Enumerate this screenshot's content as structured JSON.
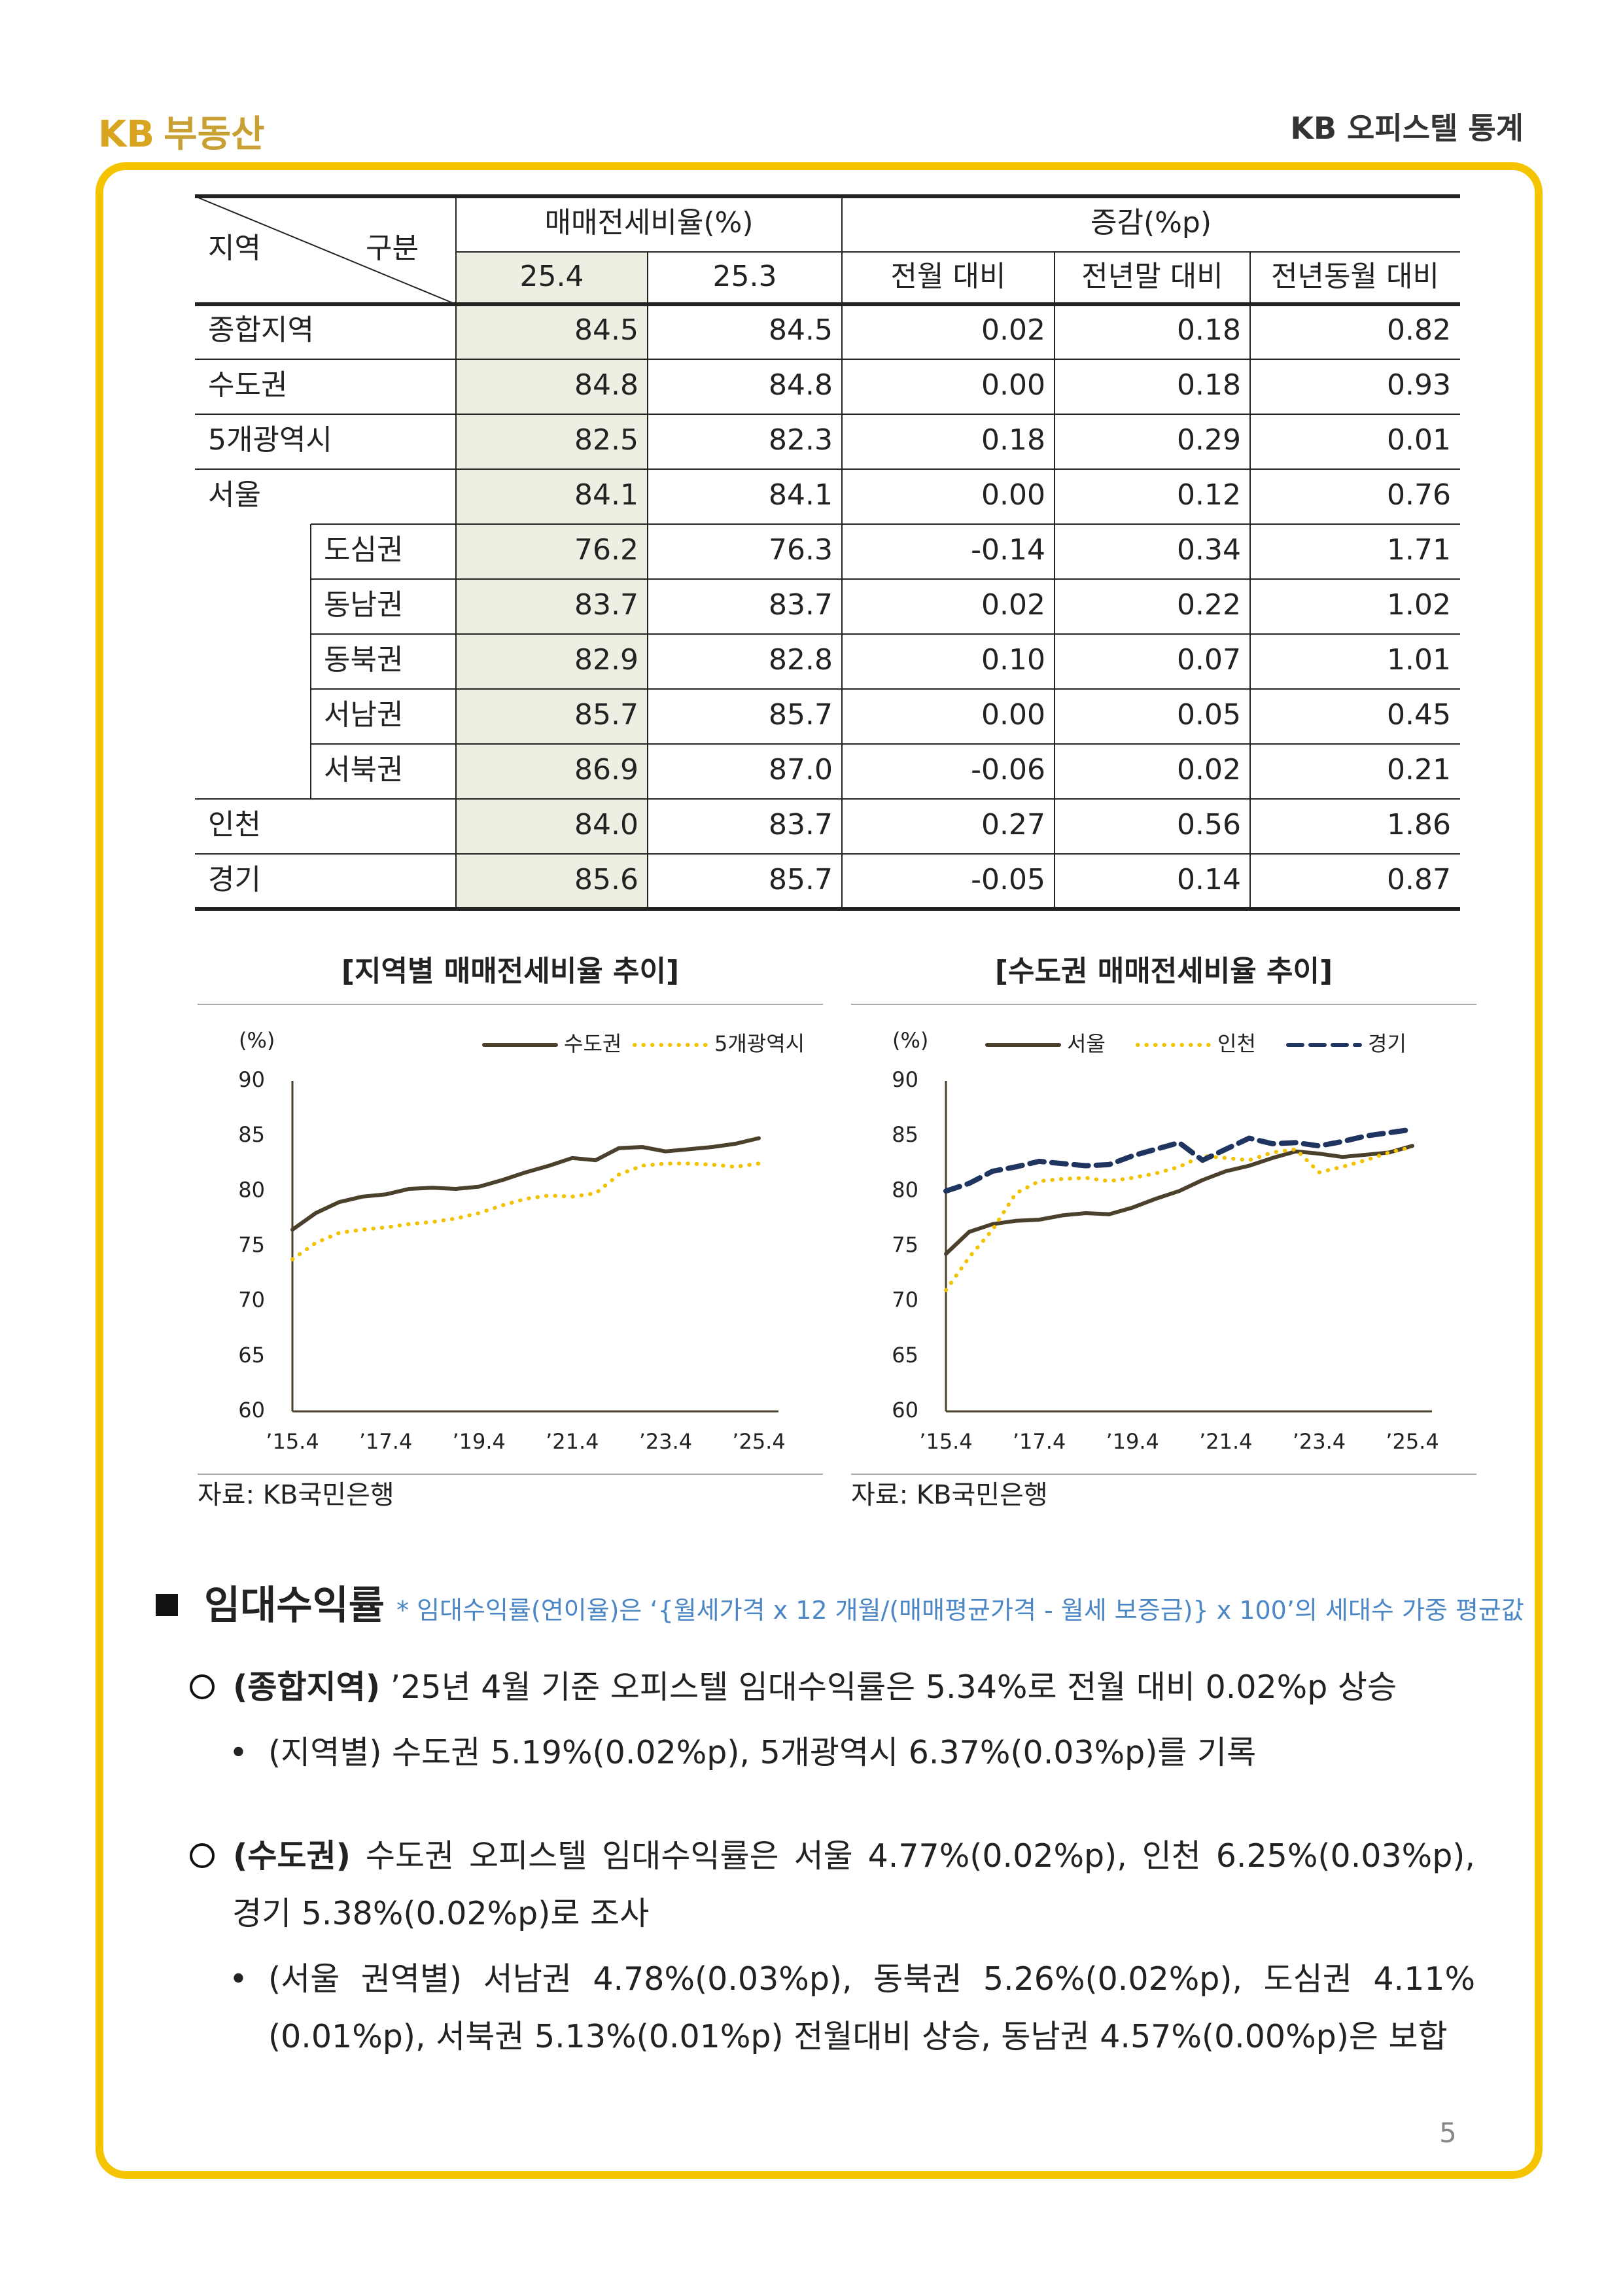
{
  "header": {
    "logo_mark": "KB",
    "logo_text": "부동산",
    "title": "KB 오피스텔 통계"
  },
  "table": {
    "corner_region": "지역",
    "corner_item": "구분",
    "group_headers": [
      "매매전세비율(%)",
      "증감(%p)"
    ],
    "columns": [
      "25.4",
      "25.3",
      "전월 대비",
      "전년말 대비",
      "전년동월 대비"
    ],
    "rows": [
      {
        "name": "종합지역",
        "cells": [
          "84.5",
          "84.5",
          "0.02",
          "0.18",
          "0.82"
        ]
      },
      {
        "name": "수도권",
        "cells": [
          "84.8",
          "84.8",
          "0.00",
          "0.18",
          "0.93"
        ]
      },
      {
        "name": "5개광역시",
        "cells": [
          "82.5",
          "82.3",
          "0.18",
          "0.29",
          "0.01"
        ]
      },
      {
        "name": "서울",
        "cells": [
          "84.1",
          "84.1",
          "0.00",
          "0.12",
          "0.76"
        ],
        "districts": [
          {
            "name": "도심권",
            "cells": [
              "76.2",
              "76.3",
              "-0.14",
              "0.34",
              "1.71"
            ]
          },
          {
            "name": "동남권",
            "cells": [
              "83.7",
              "83.7",
              "0.02",
              "0.22",
              "1.02"
            ]
          },
          {
            "name": "동북권",
            "cells": [
              "82.9",
              "82.8",
              "0.10",
              "0.07",
              "1.01"
            ]
          },
          {
            "name": "서남권",
            "cells": [
              "85.7",
              "85.7",
              "0.00",
              "0.05",
              "0.45"
            ]
          },
          {
            "name": "서북권",
            "cells": [
              "86.9",
              "87.0",
              "-0.06",
              "0.02",
              "0.21"
            ]
          }
        ]
      },
      {
        "name": "인천",
        "cells": [
          "84.0",
          "83.7",
          "0.27",
          "0.56",
          "1.86"
        ]
      },
      {
        "name": "경기",
        "cells": [
          "85.6",
          "85.7",
          "-0.05",
          "0.14",
          "0.87"
        ]
      }
    ]
  },
  "chart_data": [
    {
      "type": "line",
      "title": "[지역별 매매전세비율 추이]",
      "y_label": "(%)",
      "source": "자료: KB국민은행",
      "categories": [
        "’15.4",
        null,
        null,
        null,
        "’17.4",
        null,
        null,
        null,
        "’19.4",
        null,
        null,
        null,
        "’21.4",
        null,
        null,
        null,
        "’23.4",
        null,
        null,
        null,
        "’25.4"
      ],
      "ylim": [
        60,
        90
      ],
      "yticks": [
        60,
        65,
        70,
        75,
        80,
        85,
        90
      ],
      "grid": false,
      "series": [
        {
          "name": "수도권",
          "color": "#4a402c",
          "style": "solid",
          "values": [
            76.5,
            78,
            79,
            79.5,
            79.7,
            80.2,
            80.3,
            80.2,
            80.4,
            81,
            81.7,
            82.3,
            83,
            82.8,
            83.9,
            84,
            83.6,
            83.8,
            84,
            84.3,
            84.8
          ]
        },
        {
          "name": "5개광역시",
          "color": "#f2c200",
          "style": "dotted",
          "values": [
            73.8,
            75.3,
            76.2,
            76.5,
            76.7,
            77,
            77.2,
            77.5,
            78,
            78.7,
            79.3,
            79.6,
            79.5,
            79.8,
            81.5,
            82.3,
            82.5,
            82.5,
            82.4,
            82.2,
            82.5
          ]
        }
      ]
    },
    {
      "type": "line",
      "title": "[수도권 매매전세비율 추이]",
      "y_label": "(%)",
      "source": "자료: KB국민은행",
      "categories": [
        "’15.4",
        null,
        null,
        null,
        "’17.4",
        null,
        null,
        null,
        "’19.4",
        null,
        null,
        null,
        "’21.4",
        null,
        null,
        null,
        "’23.4",
        null,
        null,
        null,
        "’25.4"
      ],
      "ylim": [
        60,
        90
      ],
      "yticks": [
        60,
        65,
        70,
        75,
        80,
        85,
        90
      ],
      "grid": false,
      "series": [
        {
          "name": "서울",
          "color": "#4a402c",
          "style": "solid",
          "values": [
            74.3,
            76.3,
            77,
            77.3,
            77.4,
            77.8,
            78,
            77.9,
            78.5,
            79.3,
            80,
            81,
            81.8,
            82.3,
            83,
            83.6,
            83.4,
            83.1,
            83.3,
            83.5,
            84.1
          ]
        },
        {
          "name": "인천",
          "color": "#f2c200",
          "style": "dotted",
          "values": [
            71,
            74,
            76.5,
            79.8,
            80.9,
            81.1,
            81.2,
            80.9,
            81.2,
            81.6,
            82.2,
            83.2,
            83,
            82.8,
            83.5,
            83.8,
            81.7,
            82.2,
            82.8,
            83.5,
            84.0
          ]
        },
        {
          "name": "경기",
          "color": "#1f3560",
          "style": "dashed",
          "values": [
            80,
            80.7,
            81.8,
            82.2,
            82.7,
            82.5,
            82.3,
            82.4,
            83.2,
            83.8,
            84.4,
            82.8,
            83.8,
            84.8,
            84.3,
            84.4,
            84.1,
            84.5,
            85,
            85.3,
            85.6
          ]
        }
      ]
    }
  ],
  "section": {
    "title": "임대수익률",
    "note": "* 임대수익률(연이율)은 ‘{월세가격 x 12 개월/(매매평균가격 - 월세 보증금)} x 100’의 세대수 가중 평균값",
    "items": [
      {
        "label": "(종합지역)",
        "text": " ’25년 4월 기준 오피스텔 임대수익률은 5.34%로 전월 대비 0.02%p 상승",
        "bullets": [
          "(지역별) 수도권 5.19%(0.02%p), 5개광역시 6.37%(0.03%p)를 기록"
        ]
      },
      {
        "label": "(수도권)",
        "text": " 수도권 오피스텔 임대수익률은 서울 4.77%(0.02%p), 인천 6.25%(0.03%p), 경기 5.38%(0.02%p)로 조사",
        "bullets": [
          "(서울 권역별) 서남권 4.78%(0.03%p), 동북권 5.26%(0.02%p), 도심권 4.11%(0.01%p), 서북권 5.13%(0.01%p) 전월대비 상승, 동남권 4.57%(0.00%p)은 보합"
        ]
      }
    ]
  },
  "page_number": "5"
}
